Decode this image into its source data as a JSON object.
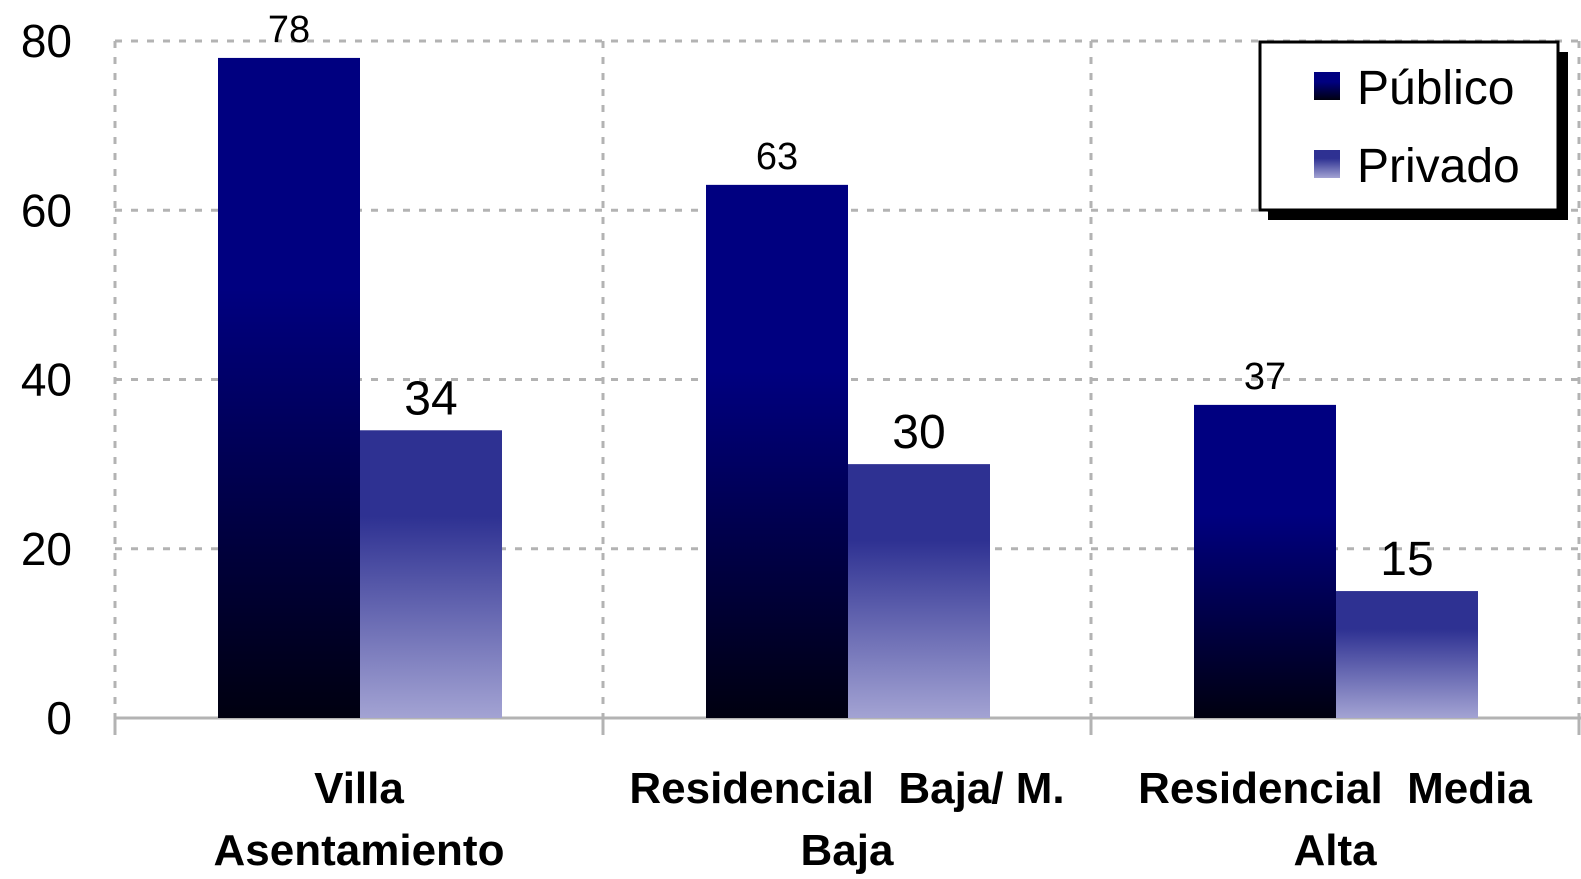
{
  "chart_data": {
    "type": "bar",
    "categories": [
      [
        "Villa",
        "Asentamiento"
      ],
      [
        "Residencial  Baja/ M.",
        "Baja"
      ],
      [
        "Residencial  Media",
        "Alta"
      ]
    ],
    "series": [
      {
        "name": "Público",
        "values": [
          78,
          63,
          37
        ],
        "color_top": "#000080",
        "color_bottom": "#000010"
      },
      {
        "name": "Privado",
        "values": [
          34,
          30,
          15
        ],
        "color_top": "#2E3192",
        "color_bottom": "#A3A3D3"
      }
    ],
    "ylim": [
      0,
      80
    ],
    "yticks": [
      "0",
      "20",
      "40",
      "60",
      "80"
    ],
    "grid": true,
    "legend": "top-right"
  }
}
